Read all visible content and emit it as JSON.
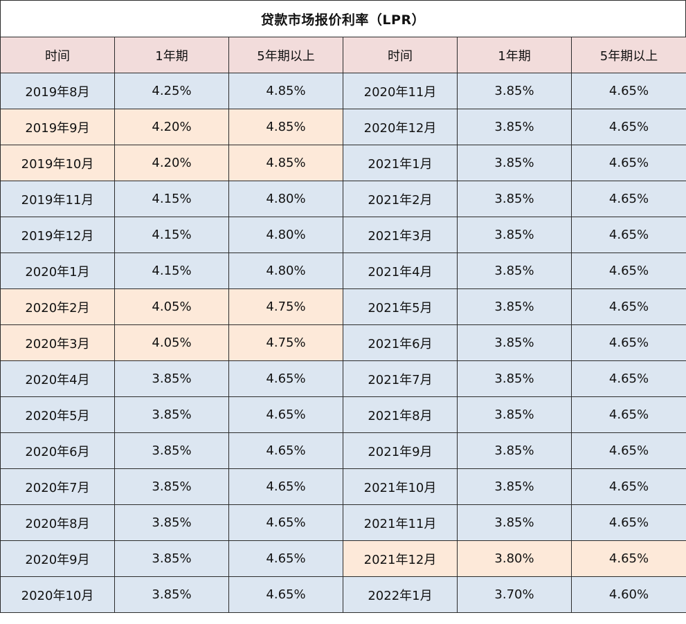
{
  "title": "贷款市场报价利率（LPR）",
  "colors": {
    "header_bg": "#f2dcdb",
    "cell_bg": "#dce6f1",
    "highlight_bg": "#fde9d9",
    "border": "#2b2b2b"
  },
  "headers": [
    "时间",
    "1年期",
    "5年期以上",
    "时间",
    "1年期",
    "5年期以上"
  ],
  "left_rows": [
    {
      "date": "2019年8月",
      "one_year": "4.25%",
      "five_year": "4.85%",
      "highlight": false
    },
    {
      "date": "2019年9月",
      "one_year": "4.20%",
      "five_year": "4.85%",
      "highlight": true
    },
    {
      "date": "2019年10月",
      "one_year": "4.20%",
      "five_year": "4.85%",
      "highlight": true
    },
    {
      "date": "2019年11月",
      "one_year": "4.15%",
      "five_year": "4.80%",
      "highlight": false
    },
    {
      "date": "2019年12月",
      "one_year": "4.15%",
      "five_year": "4.80%",
      "highlight": false
    },
    {
      "date": "2020年1月",
      "one_year": "4.15%",
      "five_year": "4.80%",
      "highlight": false
    },
    {
      "date": "2020年2月",
      "one_year": "4.05%",
      "five_year": "4.75%",
      "highlight": true
    },
    {
      "date": "2020年3月",
      "one_year": "4.05%",
      "five_year": "4.75%",
      "highlight": true
    },
    {
      "date": "2020年4月",
      "one_year": "3.85%",
      "five_year": "4.65%",
      "highlight": false
    },
    {
      "date": "2020年5月",
      "one_year": "3.85%",
      "five_year": "4.65%",
      "highlight": false
    },
    {
      "date": "2020年6月",
      "one_year": "3.85%",
      "five_year": "4.65%",
      "highlight": false
    },
    {
      "date": "2020年7月",
      "one_year": "3.85%",
      "five_year": "4.65%",
      "highlight": false
    },
    {
      "date": "2020年8月",
      "one_year": "3.85%",
      "five_year": "4.65%",
      "highlight": false
    },
    {
      "date": "2020年9月",
      "one_year": "3.85%",
      "five_year": "4.65%",
      "highlight": false
    },
    {
      "date": "2020年10月",
      "one_year": "3.85%",
      "five_year": "4.65%",
      "highlight": false
    }
  ],
  "right_rows": [
    {
      "date": "2020年11月",
      "one_year": "3.85%",
      "five_year": "4.65%",
      "highlight": false
    },
    {
      "date": "2020年12月",
      "one_year": "3.85%",
      "five_year": "4.65%",
      "highlight": false
    },
    {
      "date": "2021年1月",
      "one_year": "3.85%",
      "five_year": "4.65%",
      "highlight": false
    },
    {
      "date": "2021年2月",
      "one_year": "3.85%",
      "five_year": "4.65%",
      "highlight": false
    },
    {
      "date": "2021年3月",
      "one_year": "3.85%",
      "five_year": "4.65%",
      "highlight": false
    },
    {
      "date": "2021年4月",
      "one_year": "3.85%",
      "five_year": "4.65%",
      "highlight": false
    },
    {
      "date": "2021年5月",
      "one_year": "3.85%",
      "five_year": "4.65%",
      "highlight": false
    },
    {
      "date": "2021年6月",
      "one_year": "3.85%",
      "five_year": "4.65%",
      "highlight": false
    },
    {
      "date": "2021年7月",
      "one_year": "3.85%",
      "five_year": "4.65%",
      "highlight": false
    },
    {
      "date": "2021年8月",
      "one_year": "3.85%",
      "five_year": "4.65%",
      "highlight": false
    },
    {
      "date": "2021年9月",
      "one_year": "3.85%",
      "five_year": "4.65%",
      "highlight": false
    },
    {
      "date": "2021年10月",
      "one_year": "3.85%",
      "five_year": "4.65%",
      "highlight": false
    },
    {
      "date": "2021年11月",
      "one_year": "3.85%",
      "five_year": "4.65%",
      "highlight": false
    },
    {
      "date": "2021年12月",
      "one_year": "3.80%",
      "five_year": "4.65%",
      "highlight": true
    },
    {
      "date": "2022年1月",
      "one_year": "3.70%",
      "five_year": "4.60%",
      "highlight": false
    }
  ]
}
